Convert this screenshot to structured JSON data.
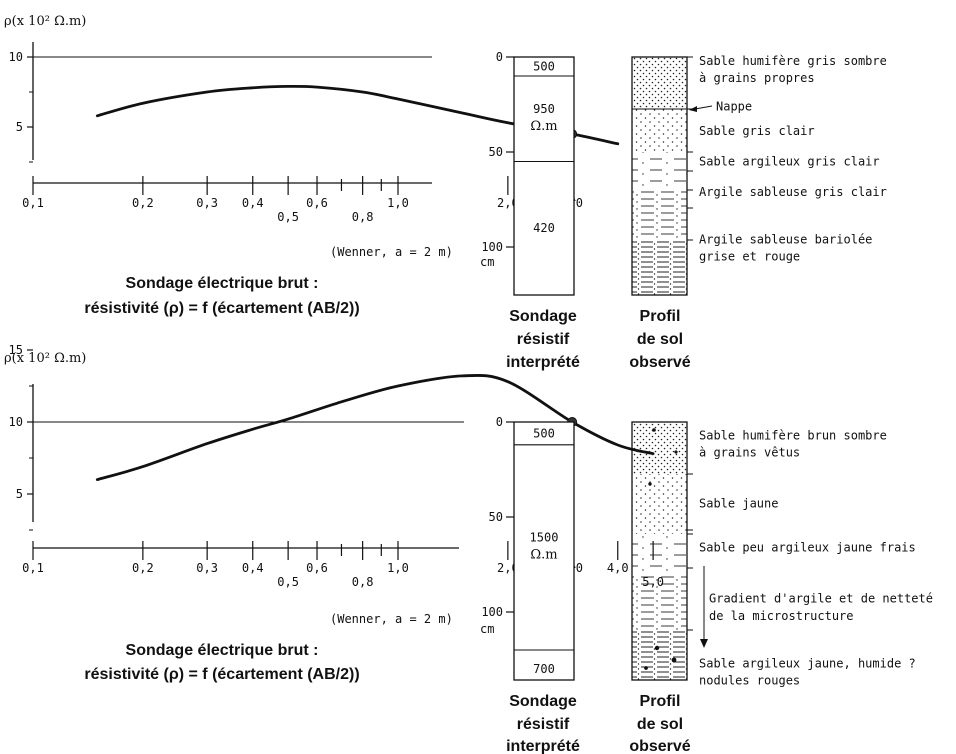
{
  "graphs": [
    {
      "y_label": "ρ(x 10² Ω.m)",
      "y_ticks": [
        {
          "value": 10,
          "label": "10"
        },
        {
          "value": 5,
          "label": "5"
        }
      ],
      "x_ticks": [
        {
          "value": 0.1,
          "label": "0,1",
          "row": 1
        },
        {
          "value": 0.2,
          "label": "0,2",
          "row": 1
        },
        {
          "value": 0.3,
          "label": "0,3",
          "row": 1
        },
        {
          "value": 0.4,
          "label": "0,4",
          "row": 1
        },
        {
          "value": 0.5,
          "label": "0,5",
          "row": 2
        },
        {
          "value": 0.6,
          "label": "0,6",
          "row": 1
        },
        {
          "value": 0.7,
          "label": "",
          "row": 0
        },
        {
          "value": 0.8,
          "label": "0,8",
          "row": 2
        },
        {
          "value": 0.9,
          "label": "",
          "row": 0
        },
        {
          "value": 1.0,
          "label": "1,0",
          "row": 1
        },
        {
          "value": 2.0,
          "label": "2,0",
          "row": 1
        },
        {
          "value": 3.0,
          "label": "3,0",
          "row": 1
        }
      ],
      "curve": [
        [
          0.15,
          5.8
        ],
        [
          0.2,
          6.7
        ],
        [
          0.3,
          7.5
        ],
        [
          0.4,
          7.8
        ],
        [
          0.5,
          7.9
        ],
        [
          0.6,
          7.85
        ],
        [
          0.8,
          7.5
        ],
        [
          1.0,
          7.0
        ],
        [
          1.5,
          6.0
        ],
        [
          2.0,
          5.3
        ],
        [
          3.0,
          4.5
        ],
        [
          4.0,
          3.8
        ]
      ],
      "marker": {
        "x": 3.0,
        "y": 4.5
      },
      "wenner_label": "(Wenner, a = 2 m)",
      "caption_line1": "Sondage électrique brut :",
      "caption_line2": "résistivité (ρ) = f (écartement (AB/2))"
    },
    {
      "y_label": "ρ(x 10² Ω.m)",
      "y_ticks": [
        {
          "value": 15,
          "label": "15"
        },
        {
          "value": 10,
          "label": "10"
        },
        {
          "value": 5,
          "label": "5"
        }
      ],
      "x_ticks": [
        {
          "value": 0.1,
          "label": "0,1",
          "row": 1
        },
        {
          "value": 0.2,
          "label": "0,2",
          "row": 1
        },
        {
          "value": 0.3,
          "label": "0,3",
          "row": 1
        },
        {
          "value": 0.4,
          "label": "0,4",
          "row": 1
        },
        {
          "value": 0.5,
          "label": "0,5",
          "row": 2
        },
        {
          "value": 0.6,
          "label": "0,6",
          "row": 1
        },
        {
          "value": 0.7,
          "label": "",
          "row": 0
        },
        {
          "value": 0.8,
          "label": "0,8",
          "row": 2
        },
        {
          "value": 0.9,
          "label": "",
          "row": 0
        },
        {
          "value": 1.0,
          "label": "1,0",
          "row": 1
        },
        {
          "value": 2.0,
          "label": "2,0",
          "row": 1
        },
        {
          "value": 3.0,
          "label": "3,0",
          "row": 1
        },
        {
          "value": 4.0,
          "label": "4,0",
          "row": 1
        },
        {
          "value": 5.0,
          "label": "5,0",
          "row": 2
        }
      ],
      "curve": [
        [
          0.15,
          6.0
        ],
        [
          0.2,
          6.9
        ],
        [
          0.3,
          8.5
        ],
        [
          0.4,
          9.5
        ],
        [
          0.5,
          10.2
        ],
        [
          0.7,
          11.4
        ],
        [
          1.0,
          12.5
        ],
        [
          1.5,
          13.2
        ],
        [
          2.0,
          12.8
        ],
        [
          3.0,
          10.0
        ],
        [
          4.0,
          8.4
        ],
        [
          5.0,
          7.8
        ]
      ],
      "marker": {
        "x": 3.0,
        "y": 10.0
      },
      "wenner_label": "(Wenner, a = 2 m)",
      "caption_line1": "Sondage électrique brut :",
      "caption_line2": "résistivité (ρ) = f (écartement (AB/2))"
    }
  ],
  "columns": [
    {
      "depth_ticks": [
        {
          "value": 0,
          "label": "0"
        },
        {
          "value": 50,
          "label": "50"
        },
        {
          "value": 100,
          "label": "100"
        }
      ],
      "depth_unit": "cm",
      "layers": [
        {
          "top": 0,
          "bottom": 10,
          "label1": "500",
          "label2": ""
        },
        {
          "top": 10,
          "bottom": 55,
          "label1": "950",
          "label2": "Ω.m"
        },
        {
          "top": 55,
          "bottom": 125,
          "label1": "420",
          "label2": ""
        }
      ],
      "resistif_caption": [
        "Sondage",
        "résistif",
        "interprété"
      ],
      "profile_caption": [
        "Profil",
        "de sol",
        "observé"
      ],
      "profile_notes": [
        {
          "depth": 2,
          "text": "Sable humifère gris sombre"
        },
        {
          "depth": 11,
          "text": "à grains propres"
        },
        {
          "depth": 26,
          "text": "Nappe"
        },
        {
          "depth": 39,
          "text": "Sable gris clair"
        },
        {
          "depth": 55,
          "text": "Sable argileux gris clair"
        },
        {
          "depth": 71,
          "text": "Argile sableuse gris clair"
        },
        {
          "depth": 96,
          "text": "Argile sableuse bariolée"
        },
        {
          "depth": 105,
          "text": "grise et rouge"
        }
      ]
    },
    {
      "depth_ticks": [
        {
          "value": 0,
          "label": "0"
        },
        {
          "value": 50,
          "label": "50"
        },
        {
          "value": 100,
          "label": "100"
        }
      ],
      "depth_unit": "cm",
      "layers": [
        {
          "top": 0,
          "bottom": 12,
          "label1": "500",
          "label2": ""
        },
        {
          "top": 12,
          "bottom": 120,
          "label1": "1500",
          "label2": "Ω.m"
        },
        {
          "top": 120,
          "bottom": 140,
          "label1": "700",
          "label2": ""
        }
      ],
      "resistif_caption": [
        "Sondage",
        "résistif",
        "interprété"
      ],
      "profile_caption": [
        "Profil",
        "de sol",
        "observé"
      ],
      "profile_notes": [
        {
          "depth": 7,
          "text": "Sable humifère brun sombre"
        },
        {
          "depth": 16,
          "text": "à grains vêtus"
        },
        {
          "depth": 43,
          "text": "Sable jaune"
        },
        {
          "depth": 66,
          "text": "Sable peu argileux jaune frais"
        },
        {
          "depth": 93,
          "text": "Gradient d'argile et de netteté"
        },
        {
          "depth": 102,
          "text": "de la microstructure"
        },
        {
          "depth": 127,
          "text": "Sable argileux jaune, humide ?"
        },
        {
          "depth": 136,
          "text": "nodules rouges"
        }
      ]
    }
  ]
}
